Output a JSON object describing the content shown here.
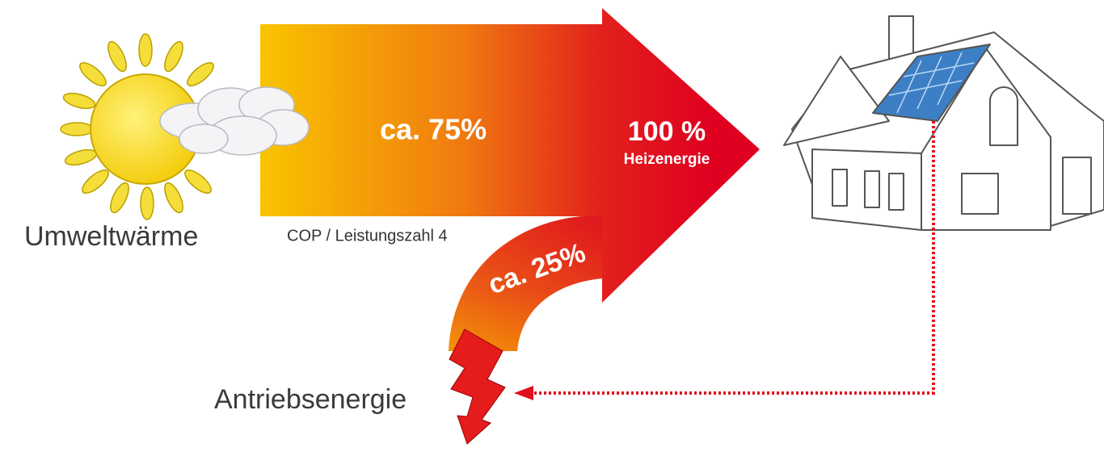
{
  "labels": {
    "source": "Umweltwärme",
    "share_environment": "ca. 75%",
    "total": "100 %",
    "total_caption": "Heizenergie",
    "cop": "COP / Leistungszahl 4",
    "share_drive": "ca. 25%",
    "drive": "Antriebsenergie"
  }
}
